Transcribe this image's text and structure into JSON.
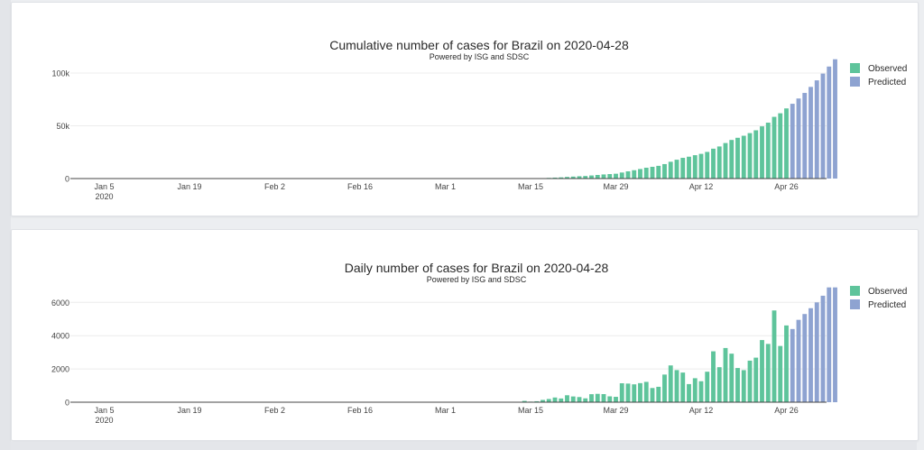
{
  "chart_data": [
    {
      "type": "bar",
      "title": "Cumulative number of cases for Brazil on 2020-04-28",
      "subtitle": "Powered by ISG and SDSC",
      "start_date": "2020-01-01",
      "x_tick_labels": [
        "Jan 5",
        "Jan 19",
        "Feb 2",
        "Feb 16",
        "Mar 1",
        "Mar 15",
        "Mar 29",
        "Apr 12",
        "Apr 26"
      ],
      "x_tick_sublabel": "2020",
      "y_tick_labels": [
        "0",
        "50k",
        "100k"
      ],
      "y_tick_values": [
        0,
        50000,
        100000
      ],
      "ylim": [
        0,
        112000
      ],
      "grid": true,
      "legend_position": "top-right",
      "series": [
        {
          "name": "Observed",
          "color": "#5ec49b",
          "start_date": "2020-02-26",
          "values": [
            1,
            1,
            1,
            2,
            2,
            2,
            3,
            8,
            13,
            19,
            25,
            31,
            38,
            52,
            77,
            98,
            121,
            200,
            234,
            291,
            428,
            621,
            904,
            1128,
            1546,
            1891,
            2201,
            2433,
            2915,
            3417,
            3904,
            4256,
            4579,
            5717,
            6836,
            7910,
            9056,
            10278,
            11130,
            12056,
            13717,
            15927,
            17857,
            19638,
            20727,
            22169,
            23430,
            25262,
            28320,
            30425,
            33682,
            36599,
            38654,
            40581,
            43079,
            45757,
            49492,
            52995,
            58509,
            61888,
            66501
          ]
        },
        {
          "name": "Predicted",
          "color": "#8ea3d1",
          "start_date": "2020-04-27",
          "values": [
            70900,
            75900,
            81200,
            86900,
            93100,
            99500,
            106200,
            113100
          ]
        }
      ]
    },
    {
      "type": "bar",
      "title": "Daily number of cases for Brazil on 2020-04-28",
      "subtitle": "Powered by ISG and SDSC",
      "start_date": "2020-01-01",
      "x_tick_labels": [
        "Jan 5",
        "Jan 19",
        "Feb 2",
        "Feb 16",
        "Mar 1",
        "Mar 15",
        "Mar 29",
        "Apr 12",
        "Apr 26"
      ],
      "x_tick_sublabel": "2020",
      "y_tick_labels": [
        "0",
        "2000",
        "4000",
        "6000"
      ],
      "y_tick_values": [
        0,
        2000,
        4000,
        6000
      ],
      "ylim": [
        0,
        7100
      ],
      "grid": true,
      "legend_position": "top-right",
      "series": [
        {
          "name": "Observed",
          "color": "#5ec49b",
          "start_date": "2020-02-26",
          "values": [
            1,
            0,
            0,
            1,
            0,
            0,
            1,
            5,
            5,
            6,
            6,
            6,
            7,
            14,
            25,
            21,
            23,
            79,
            34,
            57,
            137,
            193,
            283,
            224,
            418,
            345,
            310,
            232,
            482,
            502,
            487,
            352,
            323,
            1138,
            1119,
            1074,
            1146,
            1222,
            852,
            926,
            1661,
            2210,
            1930,
            1781,
            1089,
            1442,
            1261,
            1832,
            3058,
            2105,
            3257,
            2917,
            2055,
            1927,
            2498,
            2678,
            3735,
            3503,
            5514,
            3379,
            4613
          ]
        },
        {
          "name": "Predicted",
          "color": "#8ea3d1",
          "start_date": "2020-04-27",
          "values": [
            4399,
            4950,
            5300,
            5650,
            6000,
            6400,
            6900,
            6900
          ]
        }
      ]
    }
  ]
}
